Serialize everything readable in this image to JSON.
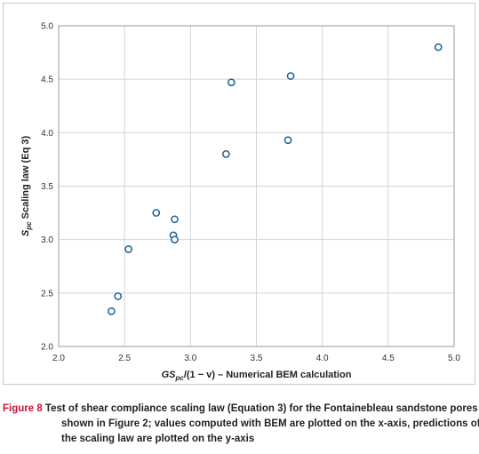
{
  "chart_data": {
    "type": "scatter",
    "x": [
      2.4,
      2.45,
      2.53,
      2.74,
      2.87,
      2.88,
      2.88,
      3.27,
      3.31,
      3.74,
      3.76,
      4.88
    ],
    "y": [
      2.33,
      2.47,
      2.91,
      3.25,
      3.04,
      3.0,
      3.19,
      3.8,
      4.47,
      3.93,
      4.53,
      4.8
    ],
    "xlim": [
      2.0,
      5.0
    ],
    "ylim": [
      2.0,
      5.0
    ],
    "xticks": [
      "2.0",
      "2.5",
      "3.0",
      "3.5",
      "4.0",
      "4.5",
      "5.0"
    ],
    "yticks": [
      "2.0",
      "2.5",
      "3.0",
      "3.5",
      "4.0",
      "4.5",
      "5.0"
    ],
    "xlabel": {
      "main": "GS",
      "sub": "pc",
      "rest": "/(1 − v) – Numerical BEM calculation"
    },
    "ylabel": {
      "main": "S",
      "sub": "pc",
      "rest": " Scaling law (Eq 3)"
    },
    "grid": true,
    "marker_color": "#1f5f8f"
  },
  "caption": {
    "label": "Figure 8",
    "line1": " Test of shear compliance scaling law (Equation 3) for the Fontainebleau sandstone pores",
    "line2": "shown in Figure 2; values computed with BEM are plotted on the x-axis, predictions of",
    "line3": "the scaling law are plotted on the y-axis"
  }
}
